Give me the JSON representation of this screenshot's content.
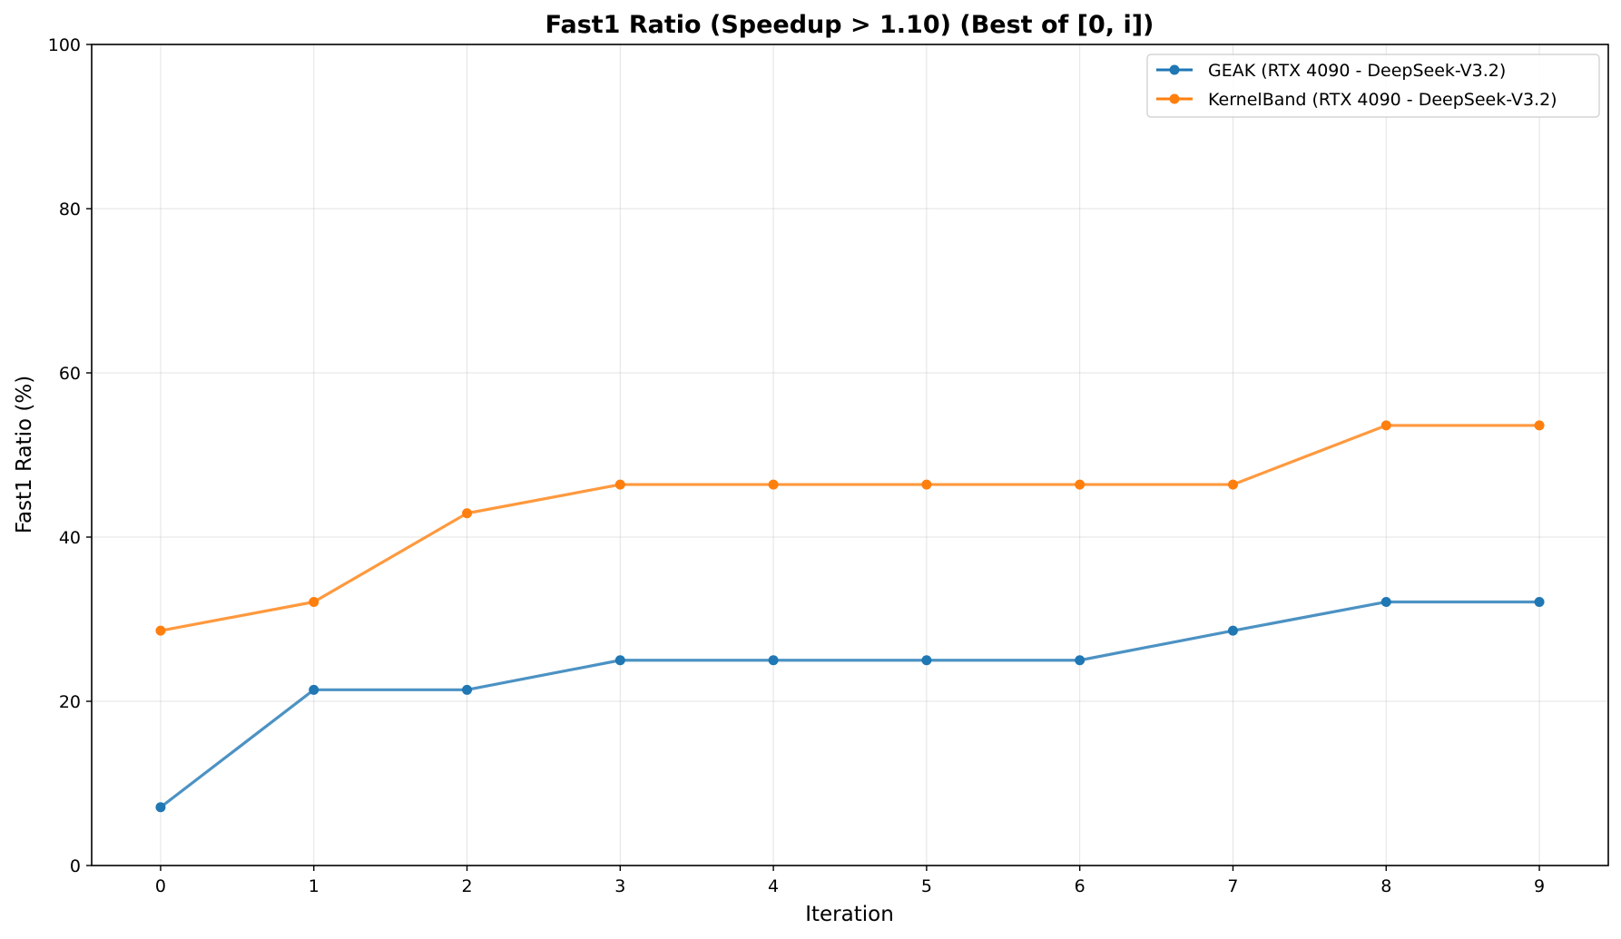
{
  "chart_data": {
    "type": "line",
    "title": "Fast1 Ratio (Speedup > 1.10) (Best of [0, i])",
    "xlabel": "Iteration",
    "ylabel": "Fast1 Ratio (%)",
    "x": [
      0,
      1,
      2,
      3,
      4,
      5,
      6,
      7,
      8,
      9
    ],
    "xlim": [
      -0.45,
      9.45
    ],
    "ylim": [
      0,
      100
    ],
    "xticks": [
      "0",
      "1",
      "2",
      "3",
      "4",
      "5",
      "6",
      "7",
      "8",
      "9"
    ],
    "yticks": [
      "0",
      "20",
      "40",
      "60",
      "80",
      "100"
    ],
    "grid": true,
    "legend_position": "top-right",
    "series": [
      {
        "name": "GEAK (RTX 4090 - DeepSeek-V3.2)",
        "color": "#1f77b4",
        "values": [
          7.1,
          21.4,
          21.4,
          25.0,
          25.0,
          25.0,
          25.0,
          28.6,
          32.1,
          32.1
        ]
      },
      {
        "name": "KernelBand (RTX 4090 - DeepSeek-V3.2)",
        "color": "#ff7f0e",
        "values": [
          28.6,
          32.1,
          42.9,
          46.4,
          46.4,
          46.4,
          46.4,
          46.4,
          53.6,
          53.6
        ]
      }
    ]
  }
}
